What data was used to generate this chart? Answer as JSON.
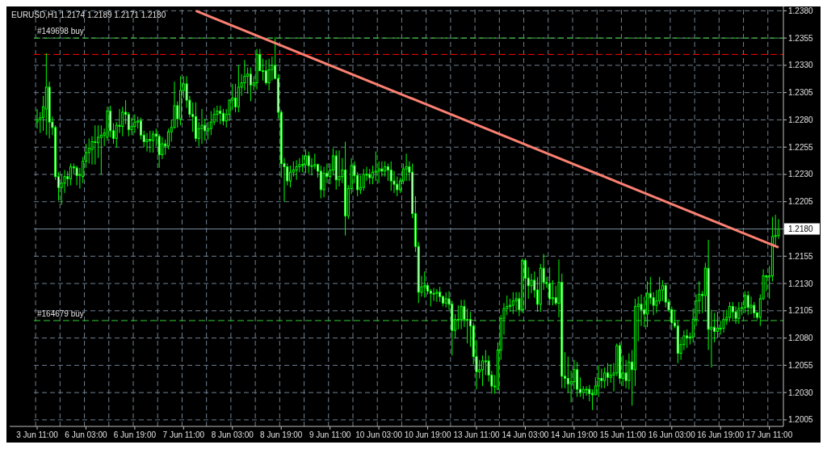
{
  "chart_data": {
    "type": "candlestick",
    "title": "EURUSD,H1  1.2174 1.2189 1.2171 1.2180",
    "color": "#00ff00",
    "categories": [
      "3 Jun 11:00",
      null,
      null,
      null,
      null,
      null,
      null,
      null,
      null,
      null,
      null,
      null,
      null,
      null,
      null,
      null,
      "6 Jun 03:00",
      null,
      null,
      null,
      null,
      null,
      null,
      null,
      null,
      null,
      null,
      null,
      null,
      null,
      null,
      null,
      "6 Jun 19:00",
      null,
      null,
      null,
      null,
      null,
      null,
      null,
      null,
      null,
      null,
      null,
      null,
      null,
      null,
      null,
      "7 Jun 11:00",
      null,
      null,
      null,
      null,
      null,
      null,
      null,
      null,
      null,
      null,
      null,
      null,
      null,
      null,
      null,
      "8 Jun 03:00",
      null,
      null,
      null,
      null,
      null,
      null,
      null,
      null,
      null,
      null,
      null,
      null,
      null,
      null,
      null,
      "8 Jun 19:00",
      null,
      null,
      null,
      null,
      null,
      null,
      null,
      null,
      null,
      null,
      null,
      null,
      null,
      null,
      null,
      "9 Jun 11:00",
      null,
      null,
      null,
      null,
      null,
      null,
      null,
      null,
      null,
      null,
      null,
      null,
      null,
      null,
      null,
      "10 Jun 03:00",
      null,
      null,
      null,
      null,
      null,
      null,
      null,
      null,
      null,
      null,
      null,
      null,
      null,
      null,
      null,
      "10 Jun 19:00",
      null,
      null,
      null,
      null,
      null,
      null,
      null,
      null,
      null,
      null,
      null,
      null,
      null,
      null,
      null,
      "13 Jun 11:00",
      null,
      null,
      null,
      null,
      null,
      null,
      null,
      null,
      null,
      null,
      null,
      null,
      null,
      null,
      null,
      "14 Jun 03:00",
      null,
      null,
      null,
      null,
      null,
      null,
      null,
      null,
      null,
      null,
      null,
      null,
      null,
      null,
      null,
      "14 Jun 19:00",
      null,
      null,
      null,
      null,
      null,
      null,
      null,
      null,
      null,
      null,
      null,
      null,
      null,
      null,
      null,
      "15 Jun 11:00",
      null,
      null,
      null,
      null,
      null,
      null,
      null,
      null,
      null,
      null,
      null,
      null,
      null,
      null,
      null,
      "16 Jun 03:00",
      null,
      null,
      null,
      null,
      null,
      null,
      null,
      null,
      null,
      null,
      null,
      null,
      null,
      null,
      null,
      "16 Jun 19:00",
      null,
      null,
      null,
      null,
      null,
      null,
      null,
      null,
      null,
      null,
      null,
      null,
      null,
      null,
      null,
      "17 Jun 11:00",
      null,
      null,
      null
    ],
    "ohlc": [
      [
        1.2278,
        1.229,
        1.2272,
        1.228
      ],
      [
        1.228,
        1.2287,
        1.2268,
        1.2282
      ],
      [
        1.2282,
        1.2302,
        1.227,
        1.2292
      ],
      [
        1.229,
        1.2341,
        1.2266,
        1.231
      ],
      [
        1.231,
        1.2315,
        1.2263,
        1.2278
      ],
      [
        1.2278,
        1.2283,
        1.2266,
        1.2273
      ],
      [
        1.2273,
        1.2275,
        1.2225,
        1.2228
      ],
      [
        1.2228,
        1.2232,
        1.2206,
        1.2218
      ],
      [
        1.2218,
        1.223,
        1.2202,
        1.2222
      ],
      [
        1.2222,
        1.2234,
        1.2213,
        1.2228
      ],
      [
        1.2228,
        1.2233,
        1.2219,
        1.2226
      ],
      [
        1.2226,
        1.224,
        1.222,
        1.2237
      ],
      [
        1.2237,
        1.224,
        1.223,
        1.2236
      ],
      [
        1.2236,
        1.2238,
        1.222,
        1.2229
      ],
      [
        1.2229,
        1.2236,
        1.2217,
        1.223
      ],
      [
        1.2228,
        1.2246,
        1.2222,
        1.2242
      ],
      [
        1.2242,
        1.2258,
        1.2236,
        1.225
      ],
      [
        1.225,
        1.2263,
        1.224,
        1.2254
      ],
      [
        1.2253,
        1.2265,
        1.2239,
        1.226
      ],
      [
        1.226,
        1.2275,
        1.2239,
        1.226
      ],
      [
        1.2259,
        1.2275,
        1.2245,
        1.2264
      ],
      [
        1.2264,
        1.2275,
        1.223,
        1.2266
      ],
      [
        1.2266,
        1.2272,
        1.2256,
        1.2268
      ],
      [
        1.2264,
        1.2292,
        1.2261,
        1.2288
      ],
      [
        1.2288,
        1.2293,
        1.2264,
        1.227
      ],
      [
        1.227,
        1.2277,
        1.2258,
        1.2263
      ],
      [
        1.2263,
        1.2278,
        1.2255,
        1.2275
      ],
      [
        1.2275,
        1.229,
        1.2268,
        1.2274
      ],
      [
        1.2274,
        1.2292,
        1.2265,
        1.2287
      ],
      [
        1.2287,
        1.2298,
        1.2276,
        1.2285
      ],
      [
        1.2285,
        1.2287,
        1.2265,
        1.2271
      ],
      [
        1.2271,
        1.2282,
        1.2266,
        1.2274
      ],
      [
        1.2274,
        1.2285,
        1.2268,
        1.2278
      ],
      [
        1.2278,
        1.2283,
        1.2272,
        1.2279
      ],
      [
        1.2279,
        1.2282,
        1.2262,
        1.2266
      ],
      [
        1.2266,
        1.227,
        1.2255,
        1.226
      ],
      [
        1.226,
        1.2268,
        1.2251,
        1.2262
      ],
      [
        1.2262,
        1.227,
        1.225,
        1.2261
      ],
      [
        1.2261,
        1.227,
        1.225,
        1.2267
      ],
      [
        1.2267,
        1.2272,
        1.2256,
        1.2265
      ],
      [
        1.2265,
        1.2267,
        1.2236,
        1.2248
      ],
      [
        1.2248,
        1.2264,
        1.2244,
        1.2258
      ],
      [
        1.2258,
        1.2262,
        1.2248,
        1.2256
      ],
      [
        1.2256,
        1.2272,
        1.2253,
        1.2269
      ],
      [
        1.2269,
        1.228,
        1.226,
        1.2273
      ],
      [
        1.2273,
        1.2315,
        1.2272,
        1.2293
      ],
      [
        1.2293,
        1.2297,
        1.2273,
        1.2281
      ],
      [
        1.2281,
        1.232,
        1.2275,
        1.2307
      ],
      [
        1.2307,
        1.232,
        1.23,
        1.2313
      ],
      [
        1.2313,
        1.232,
        1.2291,
        1.2298
      ],
      [
        1.2298,
        1.2302,
        1.2282,
        1.2285
      ],
      [
        1.2285,
        1.2296,
        1.2269,
        1.2283
      ],
      [
        1.2283,
        1.2296,
        1.226,
        1.2263
      ],
      [
        1.2263,
        1.2278,
        1.2256,
        1.2272
      ],
      [
        1.2272,
        1.229,
        1.2258,
        1.2275
      ],
      [
        1.2275,
        1.2281,
        1.2261,
        1.227
      ],
      [
        1.227,
        1.2278,
        1.2262,
        1.2272
      ],
      [
        1.2272,
        1.2288,
        1.2266,
        1.2278
      ],
      [
        1.2278,
        1.2291,
        1.2275,
        1.2285
      ],
      [
        1.2285,
        1.2293,
        1.2278,
        1.2288
      ],
      [
        1.2288,
        1.2293,
        1.2276,
        1.2286
      ],
      [
        1.2286,
        1.229,
        1.2275,
        1.2279
      ],
      [
        1.2279,
        1.229,
        1.2273,
        1.2285
      ],
      [
        1.2285,
        1.2299,
        1.2279,
        1.2298
      ],
      [
        1.2298,
        1.2313,
        1.2289,
        1.23
      ],
      [
        1.23,
        1.2313,
        1.2287,
        1.2292
      ],
      [
        1.2292,
        1.233,
        1.2287,
        1.231
      ],
      [
        1.231,
        1.2322,
        1.2302,
        1.2314
      ],
      [
        1.2314,
        1.2335,
        1.2307,
        1.232
      ],
      [
        1.232,
        1.2328,
        1.2304,
        1.2322
      ],
      [
        1.2322,
        1.2328,
        1.2297,
        1.2312
      ],
      [
        1.2312,
        1.232,
        1.2307,
        1.2314
      ],
      [
        1.2314,
        1.2345,
        1.2308,
        1.234
      ],
      [
        1.234,
        1.2345,
        1.2325,
        1.2325
      ],
      [
        1.2325,
        1.2336,
        1.2316,
        1.2325
      ],
      [
        1.2325,
        1.2335,
        1.2312,
        1.2314
      ],
      [
        1.2314,
        1.2336,
        1.2307,
        1.2326
      ],
      [
        1.2326,
        1.2338,
        1.2316,
        1.233
      ],
      [
        1.233,
        1.2356,
        1.2317,
        1.2318
      ],
      [
        1.2318,
        1.2322,
        1.2281,
        1.2287
      ],
      [
        1.2287,
        1.2289,
        1.2227,
        1.224
      ],
      [
        1.224,
        1.2245,
        1.2205,
        1.2237
      ],
      [
        1.2237,
        1.224,
        1.222,
        1.2224
      ],
      [
        1.2224,
        1.2238,
        1.2218,
        1.2232
      ],
      [
        1.2232,
        1.2242,
        1.2228,
        1.2234
      ],
      [
        1.2234,
        1.2243,
        1.2225,
        1.2237
      ],
      [
        1.2237,
        1.2245,
        1.2232,
        1.2239
      ],
      [
        1.2239,
        1.2248,
        1.2232,
        1.2239
      ],
      [
        1.2239,
        1.2253,
        1.2231,
        1.2247
      ],
      [
        1.2247,
        1.2251,
        1.2231,
        1.2238
      ],
      [
        1.2238,
        1.2245,
        1.2229,
        1.2238
      ],
      [
        1.2238,
        1.2249,
        1.2235,
        1.2239
      ],
      [
        1.2239,
        1.224,
        1.2227,
        1.2233
      ],
      [
        1.2233,
        1.2238,
        1.2208,
        1.2216
      ],
      [
        1.2216,
        1.2237,
        1.2209,
        1.2231
      ],
      [
        1.2231,
        1.224,
        1.2222,
        1.2228
      ],
      [
        1.2228,
        1.224,
        1.2221,
        1.2234
      ],
      [
        1.2234,
        1.2254,
        1.2229,
        1.2247
      ],
      [
        1.2247,
        1.2252,
        1.2216,
        1.2225
      ],
      [
        1.2225,
        1.2252,
        1.2219,
        1.2228
      ],
      [
        1.2228,
        1.2245,
        1.2222,
        1.2234
      ],
      [
        1.2234,
        1.226,
        1.2174,
        1.2192
      ],
      [
        1.2192,
        1.222,
        1.2189,
        1.2217
      ],
      [
        1.2217,
        1.2245,
        1.2212,
        1.2238
      ],
      [
        1.2238,
        1.2242,
        1.2222,
        1.2229
      ],
      [
        1.2229,
        1.2232,
        1.221,
        1.2216
      ],
      [
        1.2216,
        1.2229,
        1.2212,
        1.2218
      ],
      [
        1.2218,
        1.2235,
        1.2215,
        1.223
      ],
      [
        1.223,
        1.2237,
        1.2224,
        1.223
      ],
      [
        1.223,
        1.2235,
        1.2221,
        1.2227
      ],
      [
        1.2227,
        1.2238,
        1.2221,
        1.2232
      ],
      [
        1.2232,
        1.2251,
        1.2224,
        1.2233
      ],
      [
        1.2233,
        1.2242,
        1.2222,
        1.2235
      ],
      [
        1.2235,
        1.2242,
        1.2228,
        1.2233
      ],
      [
        1.2233,
        1.2242,
        1.2228,
        1.2237
      ],
      [
        1.2237,
        1.224,
        1.2224,
        1.2234
      ],
      [
        1.2234,
        1.2242,
        1.2215,
        1.2224
      ],
      [
        1.2224,
        1.2233,
        1.2213,
        1.2221
      ],
      [
        1.2221,
        1.2228,
        1.221,
        1.2216
      ],
      [
        1.2216,
        1.2227,
        1.2213,
        1.2224
      ],
      [
        1.2224,
        1.224,
        1.2221,
        1.2235
      ],
      [
        1.2235,
        1.2249,
        1.2224,
        1.2237
      ],
      [
        1.2237,
        1.2242,
        1.2224,
        1.2232
      ],
      [
        1.2232,
        1.224,
        1.219,
        1.2194
      ],
      [
        1.2194,
        1.221,
        1.2159,
        1.2164
      ],
      [
        1.2164,
        1.2168,
        1.2112,
        1.2122
      ],
      [
        1.2122,
        1.2137,
        1.2118,
        1.2127
      ],
      [
        1.2127,
        1.2141,
        1.2117,
        1.2128
      ],
      [
        1.2128,
        1.2131,
        1.212,
        1.2123
      ],
      [
        1.2123,
        1.2125,
        1.2109,
        1.2121
      ],
      [
        1.2121,
        1.2126,
        1.2114,
        1.2121
      ],
      [
        1.2121,
        1.2125,
        1.2113,
        1.2122
      ],
      [
        1.2122,
        1.2127,
        1.2113,
        1.2118
      ],
      [
        1.2118,
        1.2119,
        1.2109,
        1.2112
      ],
      [
        1.2112,
        1.2122,
        1.2108,
        1.2116
      ],
      [
        1.2116,
        1.2123,
        1.2106,
        1.2111
      ],
      [
        1.2111,
        1.2114,
        1.2064,
        1.2087
      ],
      [
        1.2087,
        1.2102,
        1.208,
        1.2097
      ],
      [
        1.2097,
        1.211,
        1.2088,
        1.2097
      ],
      [
        1.2097,
        1.2115,
        1.2088,
        1.2109
      ],
      [
        1.2109,
        1.2115,
        1.209,
        1.2097
      ],
      [
        1.2097,
        1.2107,
        1.2075,
        1.2097
      ],
      [
        1.2097,
        1.2104,
        1.2072,
        1.2091
      ],
      [
        1.2091,
        1.2094,
        1.2056,
        1.2063
      ],
      [
        1.2063,
        1.2078,
        1.2033,
        1.2049
      ],
      [
        1.2049,
        1.206,
        1.2043,
        1.2051
      ],
      [
        1.2051,
        1.2064,
        1.2036,
        1.2059
      ],
      [
        1.2059,
        1.2069,
        1.2046,
        1.2059
      ],
      [
        1.2059,
        1.2064,
        1.204,
        1.2046
      ],
      [
        1.2046,
        1.205,
        1.2029,
        1.2036
      ],
      [
        1.2036,
        1.2046,
        1.2029,
        1.2036
      ],
      [
        1.2033,
        1.2076,
        1.2033,
        1.2069
      ],
      [
        1.2069,
        1.2101,
        1.206,
        1.2098
      ],
      [
        1.2098,
        1.2112,
        1.2083,
        1.2107
      ],
      [
        1.2107,
        1.2119,
        1.2101,
        1.2109
      ],
      [
        1.2109,
        1.2116,
        1.2104,
        1.211
      ],
      [
        1.211,
        1.2122,
        1.2102,
        1.2114
      ],
      [
        1.2114,
        1.2122,
        1.2104,
        1.2116
      ],
      [
        1.2116,
        1.2122,
        1.21,
        1.2106
      ],
      [
        1.2106,
        1.2153,
        1.2103,
        1.2151
      ],
      [
        1.2151,
        1.2153,
        1.2106,
        1.2135
      ],
      [
        1.2135,
        1.2145,
        1.2116,
        1.2128
      ],
      [
        1.2128,
        1.2139,
        1.2121,
        1.2133
      ],
      [
        1.2133,
        1.2141,
        1.2117,
        1.2124
      ],
      [
        1.2124,
        1.2136,
        1.2104,
        1.2111
      ],
      [
        1.2111,
        1.2148,
        1.2104,
        1.2144
      ],
      [
        1.2144,
        1.2157,
        1.2124,
        1.2131
      ],
      [
        1.2131,
        1.2136,
        1.2126,
        1.213
      ],
      [
        1.213,
        1.2145,
        1.211,
        1.2116
      ],
      [
        1.2116,
        1.2133,
        1.211,
        1.2117
      ],
      [
        1.2117,
        1.2128,
        1.211,
        1.2112
      ],
      [
        1.2112,
        1.2152,
        1.2099,
        1.2131
      ],
      [
        1.2131,
        1.2139,
        1.2034,
        1.2045
      ],
      [
        1.2045,
        1.2067,
        1.2034,
        1.2043
      ],
      [
        1.2043,
        1.2063,
        1.203,
        1.2038
      ],
      [
        1.2038,
        1.205,
        1.2021,
        1.204
      ],
      [
        1.204,
        1.206,
        1.2033,
        1.2051
      ],
      [
        1.2051,
        1.2058,
        1.2026,
        1.2033
      ],
      [
        1.2033,
        1.2044,
        1.2026,
        1.203
      ],
      [
        1.203,
        1.2036,
        1.2024,
        1.2033
      ],
      [
        1.2033,
        1.2036,
        1.2027,
        1.2033
      ],
      [
        1.2033,
        1.2037,
        1.2022,
        1.2029
      ],
      [
        1.2029,
        1.2033,
        1.2014,
        1.2028
      ],
      [
        1.2028,
        1.2044,
        1.2028,
        1.2036
      ],
      [
        1.2036,
        1.2055,
        1.2026,
        1.2043
      ],
      [
        1.2043,
        1.2052,
        1.2034,
        1.2041
      ],
      [
        1.2041,
        1.2053,
        1.2034,
        1.2048
      ],
      [
        1.2048,
        1.2057,
        1.2036,
        1.2044
      ],
      [
        1.2044,
        1.2056,
        1.2039,
        1.2046
      ],
      [
        1.2046,
        1.2057,
        1.2031,
        1.2048
      ],
      [
        1.2048,
        1.2075,
        1.2045,
        1.2073
      ],
      [
        1.2073,
        1.2076,
        1.2038,
        1.2043
      ],
      [
        1.2043,
        1.2064,
        1.2036,
        1.2048
      ],
      [
        1.2048,
        1.206,
        1.2034,
        1.2041
      ],
      [
        1.2041,
        1.2066,
        1.2033,
        1.2058
      ],
      [
        1.2058,
        1.2069,
        1.2018,
        1.2051
      ],
      [
        1.2051,
        1.2116,
        1.2036,
        1.2109
      ],
      [
        1.2109,
        1.2118,
        1.2077,
        1.2111
      ],
      [
        1.2111,
        1.212,
        1.2091,
        1.2106
      ],
      [
        1.2106,
        1.2118,
        1.209,
        1.2102
      ],
      [
        1.2102,
        1.2132,
        1.209,
        1.2121
      ],
      [
        1.2121,
        1.2136,
        1.2111,
        1.2117
      ],
      [
        1.2117,
        1.2122,
        1.2101,
        1.211
      ],
      [
        1.211,
        1.2124,
        1.2103,
        1.2114
      ],
      [
        1.2114,
        1.2136,
        1.2111,
        1.2124
      ],
      [
        1.2124,
        1.2133,
        1.2114,
        1.2128
      ],
      [
        1.2128,
        1.213,
        1.2108,
        1.2113
      ],
      [
        1.2113,
        1.2116,
        1.2104,
        1.2106
      ],
      [
        1.2106,
        1.2109,
        1.2087,
        1.2094
      ],
      [
        1.2094,
        1.2106,
        1.2089,
        1.2091
      ],
      [
        1.2091,
        1.2096,
        1.2057,
        1.2066
      ],
      [
        1.2066,
        1.2079,
        1.206,
        1.2074
      ],
      [
        1.2074,
        1.2087,
        1.2069,
        1.2082
      ],
      [
        1.2082,
        1.2088,
        1.2071,
        1.208
      ],
      [
        1.208,
        1.2085,
        1.2074,
        1.2081
      ],
      [
        1.2081,
        1.2107,
        1.2076,
        1.2097
      ],
      [
        1.2097,
        1.212,
        1.2091,
        1.2114
      ],
      [
        1.2114,
        1.2132,
        1.2102,
        1.212
      ],
      [
        1.212,
        1.2123,
        1.2103,
        1.2119
      ],
      [
        1.2119,
        1.2149,
        1.2104,
        1.2144
      ],
      [
        1.2144,
        1.217,
        1.2069,
        1.2088
      ],
      [
        1.2088,
        1.2106,
        1.2053,
        1.209
      ],
      [
        1.209,
        1.2103,
        1.2076,
        1.2086
      ],
      [
        1.2086,
        1.2104,
        1.208,
        1.2089
      ],
      [
        1.2089,
        1.2096,
        1.2083,
        1.2089
      ],
      [
        1.2089,
        1.2105,
        1.2085,
        1.2097
      ],
      [
        1.2097,
        1.2106,
        1.2092,
        1.2099
      ],
      [
        1.2099,
        1.2113,
        1.2095,
        1.2109
      ],
      [
        1.2109,
        1.2113,
        1.2097,
        1.2104
      ],
      [
        1.2104,
        1.2109,
        1.2093,
        1.2098
      ],
      [
        1.2098,
        1.2113,
        1.2093,
        1.2107
      ],
      [
        1.2107,
        1.2113,
        1.2101,
        1.2108
      ],
      [
        1.2108,
        1.2123,
        1.2103,
        1.2119
      ],
      [
        1.2119,
        1.2123,
        1.2101,
        1.2108
      ],
      [
        1.2108,
        1.2118,
        1.2102,
        1.211
      ],
      [
        1.211,
        1.2113,
        1.2098,
        1.2103
      ],
      [
        1.2103,
        1.2104,
        1.2097,
        1.2099
      ],
      [
        1.2099,
        1.212,
        1.2091,
        1.2116
      ],
      [
        1.2116,
        1.2143,
        1.2115,
        1.2137
      ],
      [
        1.2137,
        1.2138,
        1.2123,
        1.2136
      ],
      [
        1.2136,
        1.2146,
        1.2116,
        1.2137
      ],
      [
        1.2137,
        1.2191,
        1.2132,
        1.2173
      ],
      [
        1.2173,
        1.2193,
        1.2164,
        1.2174
      ],
      [
        1.2174,
        1.2189,
        1.2171,
        1.218
      ]
    ],
    "series": [
      {
        "type": "line",
        "color": "#fa8072",
        "values": [
          null,
          null,
          null,
          null,
          null,
          null,
          null,
          null,
          null,
          null,
          null,
          null,
          null,
          null,
          null,
          null,
          null,
          null,
          null,
          null,
          null,
          null,
          null,
          null,
          null,
          null,
          null,
          null,
          null,
          null,
          null,
          null,
          null,
          null,
          null,
          null,
          null,
          null,
          null,
          null,
          null,
          null,
          null,
          null,
          null,
          null,
          null,
          null,
          null,
          null,
          null,
          null,
          1.238,
          null,
          null,
          null,
          null,
          null,
          null,
          null,
          null,
          null,
          null,
          null,
          null,
          null,
          null,
          null,
          null,
          null,
          null,
          null,
          null,
          null,
          null,
          null,
          null,
          null,
          null,
          null,
          null,
          null,
          null,
          null,
          null,
          null,
          null,
          null,
          null,
          null,
          null,
          null,
          null,
          null,
          null,
          null,
          null,
          null,
          null,
          null,
          null,
          null,
          null,
          null,
          null,
          null,
          null,
          null,
          null,
          null,
          null,
          null,
          null,
          null,
          null,
          null,
          null,
          null,
          null,
          null,
          null,
          null,
          null,
          null,
          null,
          null,
          null,
          null,
          null,
          null,
          null,
          null,
          null,
          null,
          null,
          null,
          null,
          null,
          null,
          null,
          null,
          null,
          null,
          null,
          null,
          null,
          null,
          null,
          null,
          null,
          null,
          null,
          null,
          null,
          null,
          null,
          null,
          null,
          null,
          null,
          null,
          null,
          null,
          null,
          null,
          null,
          null,
          null,
          null,
          null,
          null,
          null,
          null,
          null,
          null,
          null,
          null,
          null,
          null,
          null,
          null,
          null,
          null,
          null,
          null,
          null,
          null,
          null,
          null,
          null,
          null,
          null,
          null,
          null,
          null,
          null,
          null,
          null,
          null,
          null,
          null,
          null,
          null,
          null,
          null,
          null,
          null,
          null,
          null,
          null,
          null,
          null,
          null,
          null,
          null,
          null,
          null,
          null,
          null,
          null,
          null,
          null,
          null,
          null,
          null,
          null,
          null,
          null,
          null,
          null,
          null,
          null,
          null,
          null,
          null,
          null,
          null,
          null,
          null,
          null,
          null,
          null,
          null,
          1.2163
        ]
      }
    ],
    "ylim": [
      1.1999,
      1.2381
    ],
    "yticks": [
      1.2005,
      {
        "value": 1.203,
        "label": "1.2030"
      },
      1.2055,
      {
        "value": 1.208,
        "label": "1.2080"
      },
      1.2105,
      {
        "value": 1.213,
        "label": "1.2130"
      },
      1.2155,
      {
        "value": 1.218,
        "label": "1.2180"
      },
      1.2205,
      {
        "value": 1.223,
        "label": "1.2230"
      },
      1.2255,
      {
        "value": 1.228,
        "label": "1.2280"
      },
      1.2305,
      {
        "value": 1.233,
        "label": "1.2330"
      },
      1.2355,
      {
        "value": 1.238,
        "label": "1.2380"
      }
    ],
    "ref_lines": [
      {
        "axis": "y",
        "value": 1.2355,
        "label": "#149698 buy",
        "color": "#32cd32",
        "line_style": "dashed"
      },
      {
        "axis": "y",
        "value": 1.234,
        "color": "#ff0000",
        "line_style": "dashed"
      },
      {
        "axis": "y",
        "value": 1.2096,
        "label": "#164679 buy",
        "color": "#32cd32",
        "line_style": "dashed"
      },
      {
        "axis": "y",
        "value": 1.218,
        "color": "#778899",
        "line_style": "solid"
      }
    ],
    "grid": true
  }
}
